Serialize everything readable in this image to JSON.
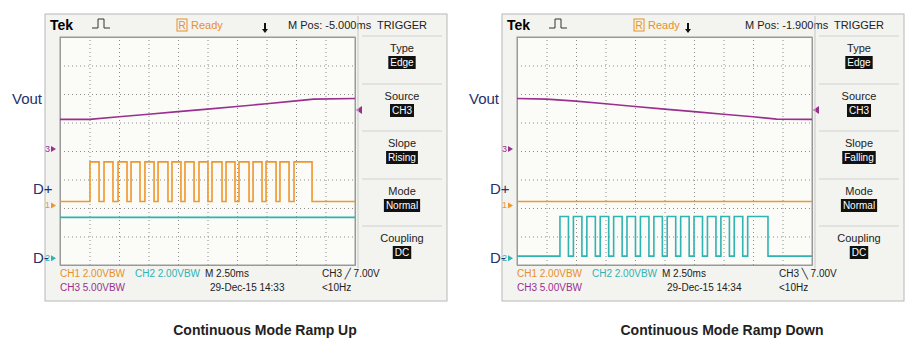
{
  "chart_data": [
    {
      "type": "line",
      "title": "Continuous Mode Ramp Up",
      "xlim": [
        0,
        25
      ],
      "ylim": [
        0,
        8
      ],
      "xticks": [
        0,
        2.5,
        5,
        7.5,
        10,
        12.5,
        15,
        17.5,
        20,
        22.5,
        25
      ],
      "yticks": [
        0,
        1,
        2,
        3,
        4,
        5,
        6,
        7,
        8
      ],
      "grid": true,
      "tick_labels": false,
      "scope": {
        "brand": "Tek",
        "state_flag": "R",
        "state": "Ready",
        "m_pos": "M Pos: -5.000ms",
        "menu_title": "TRIGGER",
        "menu": [
          {
            "label": "Type",
            "value": "Edge"
          },
          {
            "label": "Source",
            "value": "CH3"
          },
          {
            "label": "Slope",
            "value": "Rising"
          },
          {
            "label": "Mode",
            "value": "Normal"
          },
          {
            "label": "Coupling",
            "value": "DC"
          }
        ],
        "status": [
          [
            {
              "text": "CH1  2.00VBW",
              "color": "#e8902a"
            },
            {
              "text": "CH2  2.00VBW",
              "color": "#2fb3b3"
            },
            {
              "text": "M 2.50ms",
              "color": "#222222"
            },
            {
              "text": "CH3 ╱ 7.00V",
              "color": "#222222"
            }
          ],
          [
            {
              "text": "CH3  5.00VBW",
              "color": "#9b2f8f"
            },
            {
              "text": "29-Dec-15 14:33",
              "color": "#222222"
            },
            {
              "text": "<10Hz",
              "color": "#222222"
            }
          ]
        ]
      },
      "series": [
        {
          "name": "Vout",
          "channel": "3",
          "color": "#9b2f8f",
          "level": 4.07,
          "x": [
            0,
            2.5,
            5,
            7.5,
            10,
            12.5,
            15,
            17.5,
            20,
            21.5,
            25
          ],
          "values": [
            5.11,
            5.11,
            5.2,
            5.29,
            5.38,
            5.47,
            5.56,
            5.66,
            5.76,
            5.82,
            5.84
          ]
        },
        {
          "name": "D+",
          "channel": "1",
          "color": "#f0962a",
          "level": 2.09,
          "x": [
            0,
            2.54,
            2.54,
            3.31,
            3.31,
            3.73,
            3.73,
            4.49,
            4.49,
            4.92,
            4.92,
            5.68,
            5.68,
            6.02,
            6.02,
            6.78,
            6.78,
            7.2,
            7.2,
            7.97,
            7.97,
            8.31,
            8.31,
            9.15,
            9.15,
            9.49,
            9.49,
            10.25,
            10.25,
            10.59,
            10.59,
            11.36,
            11.36,
            11.78,
            11.78,
            12.54,
            12.54,
            12.88,
            12.88,
            13.73,
            13.73,
            14.07,
            14.07,
            14.83,
            14.83,
            15.17,
            15.17,
            16.02,
            16.02,
            16.36,
            16.36,
            17.12,
            17.12,
            17.46,
            17.46,
            18.31,
            18.31,
            18.64,
            18.64,
            19.41,
            19.41,
            19.83,
            19.83,
            21.36,
            21.36,
            25
          ],
          "values": [
            2.23,
            2.23,
            3.62,
            3.62,
            2.23,
            2.23,
            3.62,
            3.62,
            2.23,
            2.23,
            3.62,
            3.62,
            2.23,
            2.23,
            3.62,
            3.62,
            2.23,
            2.23,
            3.62,
            3.62,
            2.23,
            2.23,
            3.62,
            3.62,
            2.23,
            2.23,
            3.62,
            3.62,
            2.23,
            2.23,
            3.62,
            3.62,
            2.23,
            2.23,
            3.62,
            3.62,
            2.23,
            2.23,
            3.62,
            3.62,
            2.23,
            2.23,
            3.62,
            3.62,
            2.23,
            2.23,
            3.62,
            3.62,
            2.23,
            2.23,
            3.62,
            3.62,
            2.23,
            2.23,
            3.62,
            3.62,
            2.23,
            2.23,
            3.62,
            3.62,
            2.23,
            2.23,
            3.62,
            3.62,
            2.23,
            2.23
          ]
        },
        {
          "name": "D-",
          "channel": "2",
          "color": "#2fb3b3",
          "level": 0.24,
          "x": [
            0,
            25
          ],
          "values": [
            1.67,
            1.67
          ]
        }
      ]
    },
    {
      "type": "line",
      "title": "Continuous Mode Ramp Down",
      "xlim": [
        0,
        25
      ],
      "ylim": [
        0,
        8
      ],
      "xticks": [
        0,
        2.5,
        5,
        7.5,
        10,
        12.5,
        15,
        17.5,
        20,
        22.5,
        25
      ],
      "yticks": [
        0,
        1,
        2,
        3,
        4,
        5,
        6,
        7,
        8
      ],
      "grid": true,
      "tick_labels": false,
      "scope": {
        "brand": "Tek",
        "state_flag": "R",
        "state": "Ready",
        "m_pos": "M Pos: -1.900ms",
        "menu_title": "TRIGGER",
        "menu": [
          {
            "label": "Type",
            "value": "Edge"
          },
          {
            "label": "Source",
            "value": "CH3"
          },
          {
            "label": "Slope",
            "value": "Falling"
          },
          {
            "label": "Mode",
            "value": "Normal"
          },
          {
            "label": "Coupling",
            "value": "DC"
          }
        ],
        "status": [
          [
            {
              "text": "CH1  2.00VBW",
              "color": "#e8902a"
            },
            {
              "text": "CH2  2.00VBW",
              "color": "#2fb3b3"
            },
            {
              "text": "M 2.50ms",
              "color": "#222222"
            },
            {
              "text": "CH3 ╲ 7.00V",
              "color": "#222222"
            }
          ],
          [
            {
              "text": "CH3  5.00VBW",
              "color": "#9b2f8f"
            },
            {
              "text": "29-Dec-15 14:34",
              "color": "#222222"
            },
            {
              "text": "<10Hz",
              "color": "#222222"
            }
          ]
        ]
      },
      "series": [
        {
          "name": "Vout",
          "channel": "3",
          "color": "#9b2f8f",
          "level": 4.07,
          "x": [
            0,
            2.5,
            5,
            7.5,
            10,
            12.5,
            15,
            17.5,
            20,
            22,
            25
          ],
          "values": [
            5.84,
            5.82,
            5.75,
            5.66,
            5.56,
            5.47,
            5.38,
            5.29,
            5.2,
            5.12,
            5.11
          ]
        },
        {
          "name": "D+",
          "channel": "1",
          "color": "#f0962a",
          "level": 2.09,
          "x": [
            0,
            25
          ],
          "values": [
            2.23,
            2.23
          ]
        },
        {
          "name": "D-",
          "channel": "2",
          "color": "#2fb3b3",
          "level": 0.24,
          "x": [
            0,
            3.64,
            3.64,
            4.36,
            4.36,
            4.78,
            4.78,
            5.5,
            5.5,
            5.92,
            5.92,
            6.64,
            6.64,
            7.05,
            7.05,
            7.77,
            7.77,
            8.19,
            8.19,
            8.91,
            8.91,
            9.32,
            9.32,
            10.04,
            10.04,
            10.46,
            10.46,
            11.18,
            11.18,
            11.6,
            11.6,
            12.32,
            12.32,
            12.73,
            12.73,
            13.45,
            13.45,
            13.87,
            13.87,
            14.59,
            14.59,
            15.0,
            15.0,
            15.72,
            15.72,
            16.14,
            16.14,
            16.86,
            16.86,
            17.28,
            17.28,
            18.0,
            18.0,
            18.41,
            18.41,
            19.13,
            19.13,
            19.55,
            19.55,
            21.27,
            21.27,
            25
          ],
          "values": [
            0.31,
            0.31,
            1.7,
            1.7,
            0.31,
            0.31,
            1.7,
            1.7,
            0.31,
            0.31,
            1.7,
            1.7,
            0.31,
            0.31,
            1.7,
            1.7,
            0.31,
            0.31,
            1.7,
            1.7,
            0.31,
            0.31,
            1.7,
            1.7,
            0.31,
            0.31,
            1.7,
            1.7,
            0.31,
            0.31,
            1.7,
            1.7,
            0.31,
            0.31,
            1.7,
            1.7,
            0.31,
            0.31,
            1.7,
            1.7,
            0.31,
            0.31,
            1.7,
            1.7,
            0.31,
            0.31,
            1.7,
            1.7,
            0.31,
            0.31,
            1.7,
            1.7,
            0.31,
            0.31,
            1.7,
            1.7,
            0.31,
            0.31,
            1.7,
            1.7,
            0.31,
            0.31
          ]
        }
      ]
    }
  ]
}
